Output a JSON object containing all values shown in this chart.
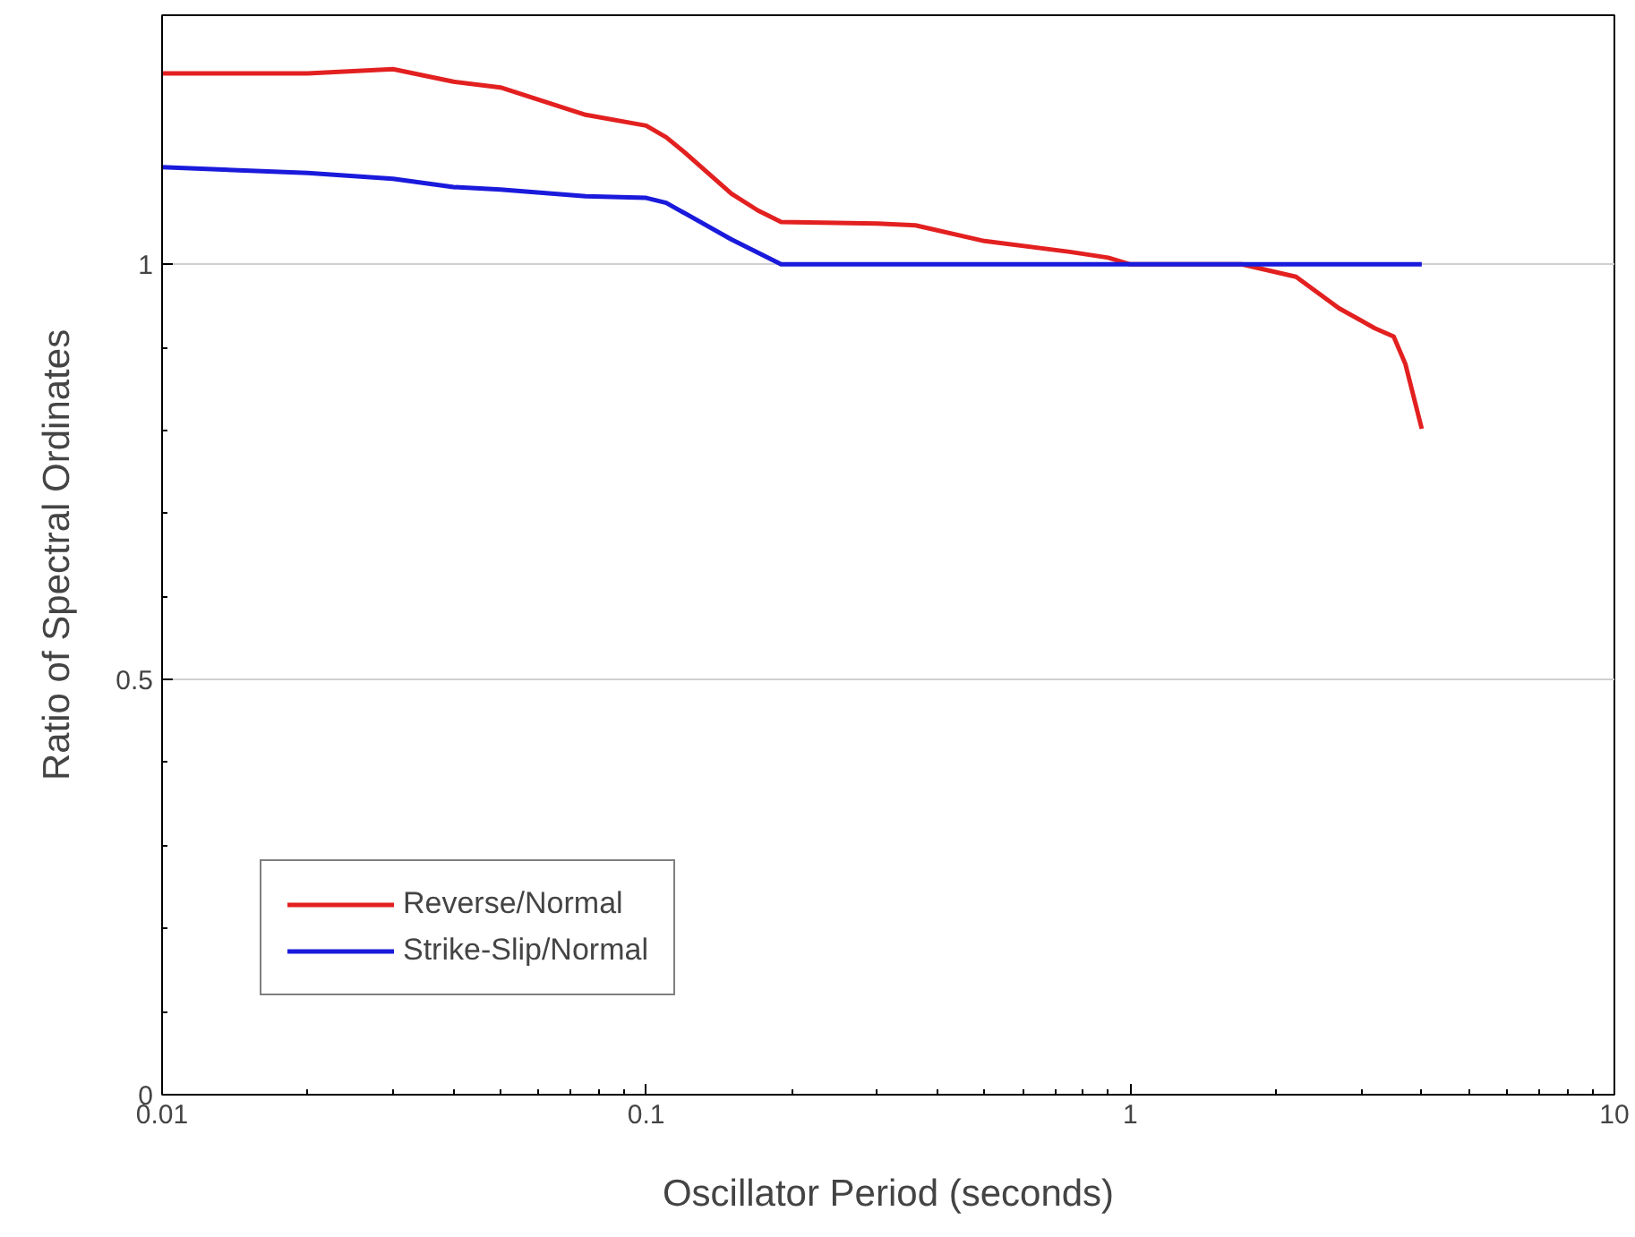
{
  "chart_data": {
    "type": "line",
    "xlabel": "Oscillator Period (seconds)",
    "ylabel": "Ratio of Spectral Ordinates",
    "log": "x",
    "xlim": [
      0.01,
      10
    ],
    "xticks": [
      0.01,
      0.1,
      1,
      10
    ],
    "ylim": [
      0,
      1.3
    ],
    "yticks": [
      0,
      0.5,
      1
    ],
    "grid": "y",
    "legend": "bottom left",
    "line_style": "solid",
    "marker": "none",
    "series": [
      {
        "name": "Reverse/Normal",
        "color": "#e32020",
        "x": [
          0.01,
          0.02,
          0.03,
          0.04,
          0.05,
          0.075,
          0.1,
          0.11,
          0.12,
          0.15,
          0.17,
          0.19,
          0.3,
          0.36,
          0.5,
          0.75,
          0.9,
          1.0,
          1.7,
          2.2,
          2.7,
          3.2,
          3.5,
          3.7,
          4.0
        ],
        "values": [
          1.23,
          1.23,
          1.235,
          1.22,
          1.213,
          1.18,
          1.167,
          1.153,
          1.135,
          1.085,
          1.065,
          1.051,
          1.049,
          1.047,
          1.028,
          1.015,
          1.008,
          1.0,
          1.0,
          0.985,
          0.947,
          0.923,
          0.913,
          0.88,
          0.802
        ]
      },
      {
        "name": "Strike-Slip/Normal",
        "color": "#1a1adc",
        "x": [
          0.01,
          0.02,
          0.03,
          0.04,
          0.05,
          0.075,
          0.1,
          0.11,
          0.15,
          0.19,
          4.0
        ],
        "values": [
          1.117,
          1.11,
          1.103,
          1.093,
          1.09,
          1.082,
          1.08,
          1.074,
          1.03,
          1.0,
          1.0
        ]
      }
    ]
  }
}
